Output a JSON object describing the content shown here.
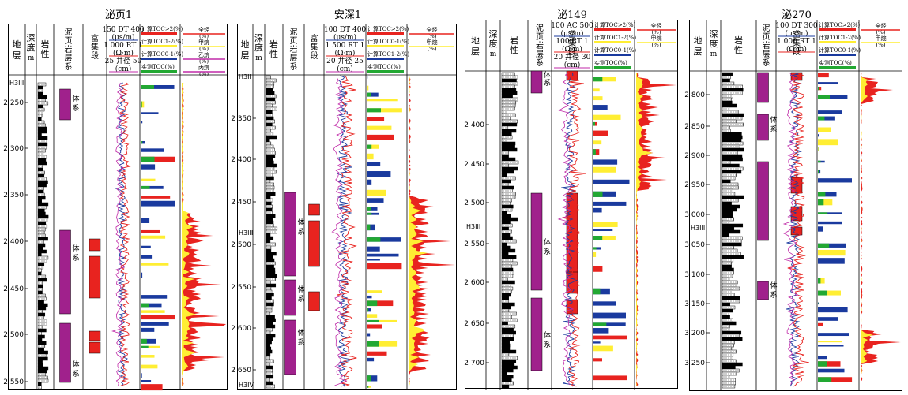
{
  "colors": {
    "purple": "#a0218c",
    "red": "#e8231f",
    "yellow": "#ffee33",
    "blue": "#1a3a9e",
    "green": "#22a832",
    "magenta": "#c02aa8",
    "black": "#000000"
  },
  "headers": {
    "stratum": "地层",
    "depth": "深度",
    "depth_unit": "m",
    "lithology": "岩性",
    "shale_system": "泥页岩层系",
    "enrich": "富集段",
    "system_word": "体系"
  },
  "wells": [
    {
      "title": "泌页1",
      "log_header": [
        "150 DT 400",
        "(μs/m)",
        "1 000 RT 1",
        "(Ω·m)",
        "25 井径 50",
        "(cm)"
      ],
      "toc_header": [
        "计算TOC>2(%)",
        "计算TOC1-2(%)",
        "计算TOC0-1(%)",
        "实测TOC(%)"
      ],
      "gas_header": [
        "全烃 (%)",
        "甲烷 (%)",
        "乙烷 (%)",
        "丙烷 (%)"
      ],
      "depths": [
        "2 250",
        "2 300",
        "2 350",
        "2 400",
        "2 450",
        "2 500",
        "2 550"
      ],
      "strata": [
        {
          "label": "H3III",
          "pos": "top"
        }
      ]
    },
    {
      "title": "安深1",
      "log_header": [
        "100 DT 400",
        "(μs/m)",
        "1 500 RT 1",
        "(Ω·m)",
        "20 井径 25",
        "(cm)"
      ],
      "toc_header": [
        "计算TOC>2(%)",
        "计算TOC0-1(%)",
        "计算TOC1-2(%)",
        "实测TOC(%)"
      ],
      "gas_header": [
        "全烃 (%)",
        "甲烷 (%)"
      ],
      "depths": [
        "2 350",
        "2 400",
        "2 450",
        "2 500",
        "2 550",
        "2 600",
        "2 650"
      ],
      "strata": [
        {
          "label": "H3II",
          "pos": "top"
        },
        {
          "label": "H3III",
          "pos": "mid"
        },
        {
          "label": "H3IV",
          "pos": "bottom"
        }
      ]
    },
    {
      "title": "泌149",
      "log_header": [
        "100 AC 500",
        "(μs/m)",
        "100 RT 1",
        "(Ω·m)",
        "20 井径 30",
        "(cm)"
      ],
      "toc_header": [
        "计算TOC>2(%)",
        "计算TOC1-2(%)",
        "计算TOC0-1(%)",
        "实测TOC(%)"
      ],
      "gas_header": [
        "全烃 (%)",
        "甲烷 (%)"
      ],
      "depths": [
        "2 400",
        "2 450",
        "2 500",
        "2 550",
        "2 600",
        "2 650",
        "2 700"
      ],
      "strata": [
        {
          "label": "H3III",
          "pos": "mid"
        }
      ]
    },
    {
      "title": "泌270",
      "log_header": [
        "100 DT 300",
        "(μs/m)",
        "1 000 RT 1",
        "(Ω·m)"
      ],
      "toc_header": [
        "计算TOC>2(%)",
        "计算TOC1-2(%)",
        "计算TOC0-1(%)",
        "实测TOC(%)"
      ],
      "gas_header": [
        "全烃 (%)",
        "甲烷 (%)"
      ],
      "depths": [
        "2 800",
        "2 850",
        "2 900",
        "2 950",
        "3 000",
        "3 050",
        "3 100",
        "3 150",
        "3 200",
        "3 250"
      ],
      "strata": [
        {
          "label": "H3III",
          "pos": "mid"
        }
      ]
    }
  ]
}
